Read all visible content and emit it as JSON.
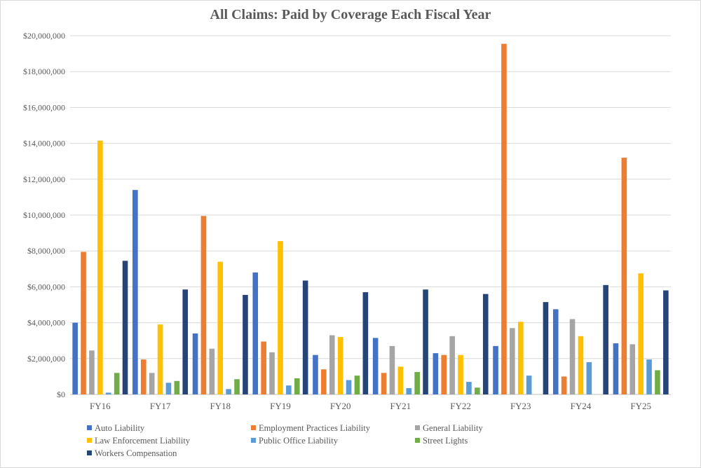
{
  "chart_data": {
    "type": "bar",
    "title": "All Claims: Paid by Coverage Each Fiscal Year",
    "xlabel": "",
    "ylabel": "",
    "ylim": [
      0,
      20000000
    ],
    "yticks": [
      "$0",
      "$2,000,000",
      "$4,000,000",
      "$6,000,000",
      "$8,000,000",
      "$10,000,000",
      "$12,000,000",
      "$14,000,000",
      "$16,000,000",
      "$18,000,000",
      "$20,000,000"
    ],
    "grid": true,
    "legend_position": "bottom",
    "categories": [
      "FY16",
      "FY17",
      "FY18",
      "FY19",
      "FY20",
      "FY21",
      "FY22",
      "FY23",
      "FY24",
      "FY25"
    ],
    "series": [
      {
        "name": "Auto Liability",
        "color": "#4472C4",
        "values": [
          4000000,
          11400000,
          3400000,
          6800000,
          2200000,
          3150000,
          2300000,
          2700000,
          4750000,
          2850000
        ]
      },
      {
        "name": "Employment Practices Liability",
        "color": "#ED7D31",
        "values": [
          7950000,
          1950000,
          9950000,
          2950000,
          1400000,
          1200000,
          2200000,
          19550000,
          1000000,
          13200000
        ]
      },
      {
        "name": "General Liability",
        "color": "#A5A5A5",
        "values": [
          2450000,
          1200000,
          2550000,
          2350000,
          3300000,
          2700000,
          3250000,
          3700000,
          4200000,
          2800000
        ]
      },
      {
        "name": "Law Enforcement Liability",
        "color": "#FFC000",
        "values": [
          14150000,
          3900000,
          7400000,
          8550000,
          3200000,
          1550000,
          2200000,
          4050000,
          3250000,
          6750000
        ]
      },
      {
        "name": "Public Office Liability",
        "color": "#5B9BD5",
        "values": [
          100000,
          650000,
          300000,
          500000,
          800000,
          350000,
          700000,
          1050000,
          1800000,
          1950000
        ]
      },
      {
        "name": "Street Lights",
        "color": "#70AD47",
        "values": [
          1200000,
          750000,
          850000,
          900000,
          1050000,
          1250000,
          380000,
          0,
          0,
          1350000
        ]
      },
      {
        "name": "Workers Compensation",
        "color": "#264478",
        "values": [
          7450000,
          5850000,
          5550000,
          6350000,
          5700000,
          5850000,
          5600000,
          5150000,
          6100000,
          5800000
        ]
      }
    ]
  }
}
